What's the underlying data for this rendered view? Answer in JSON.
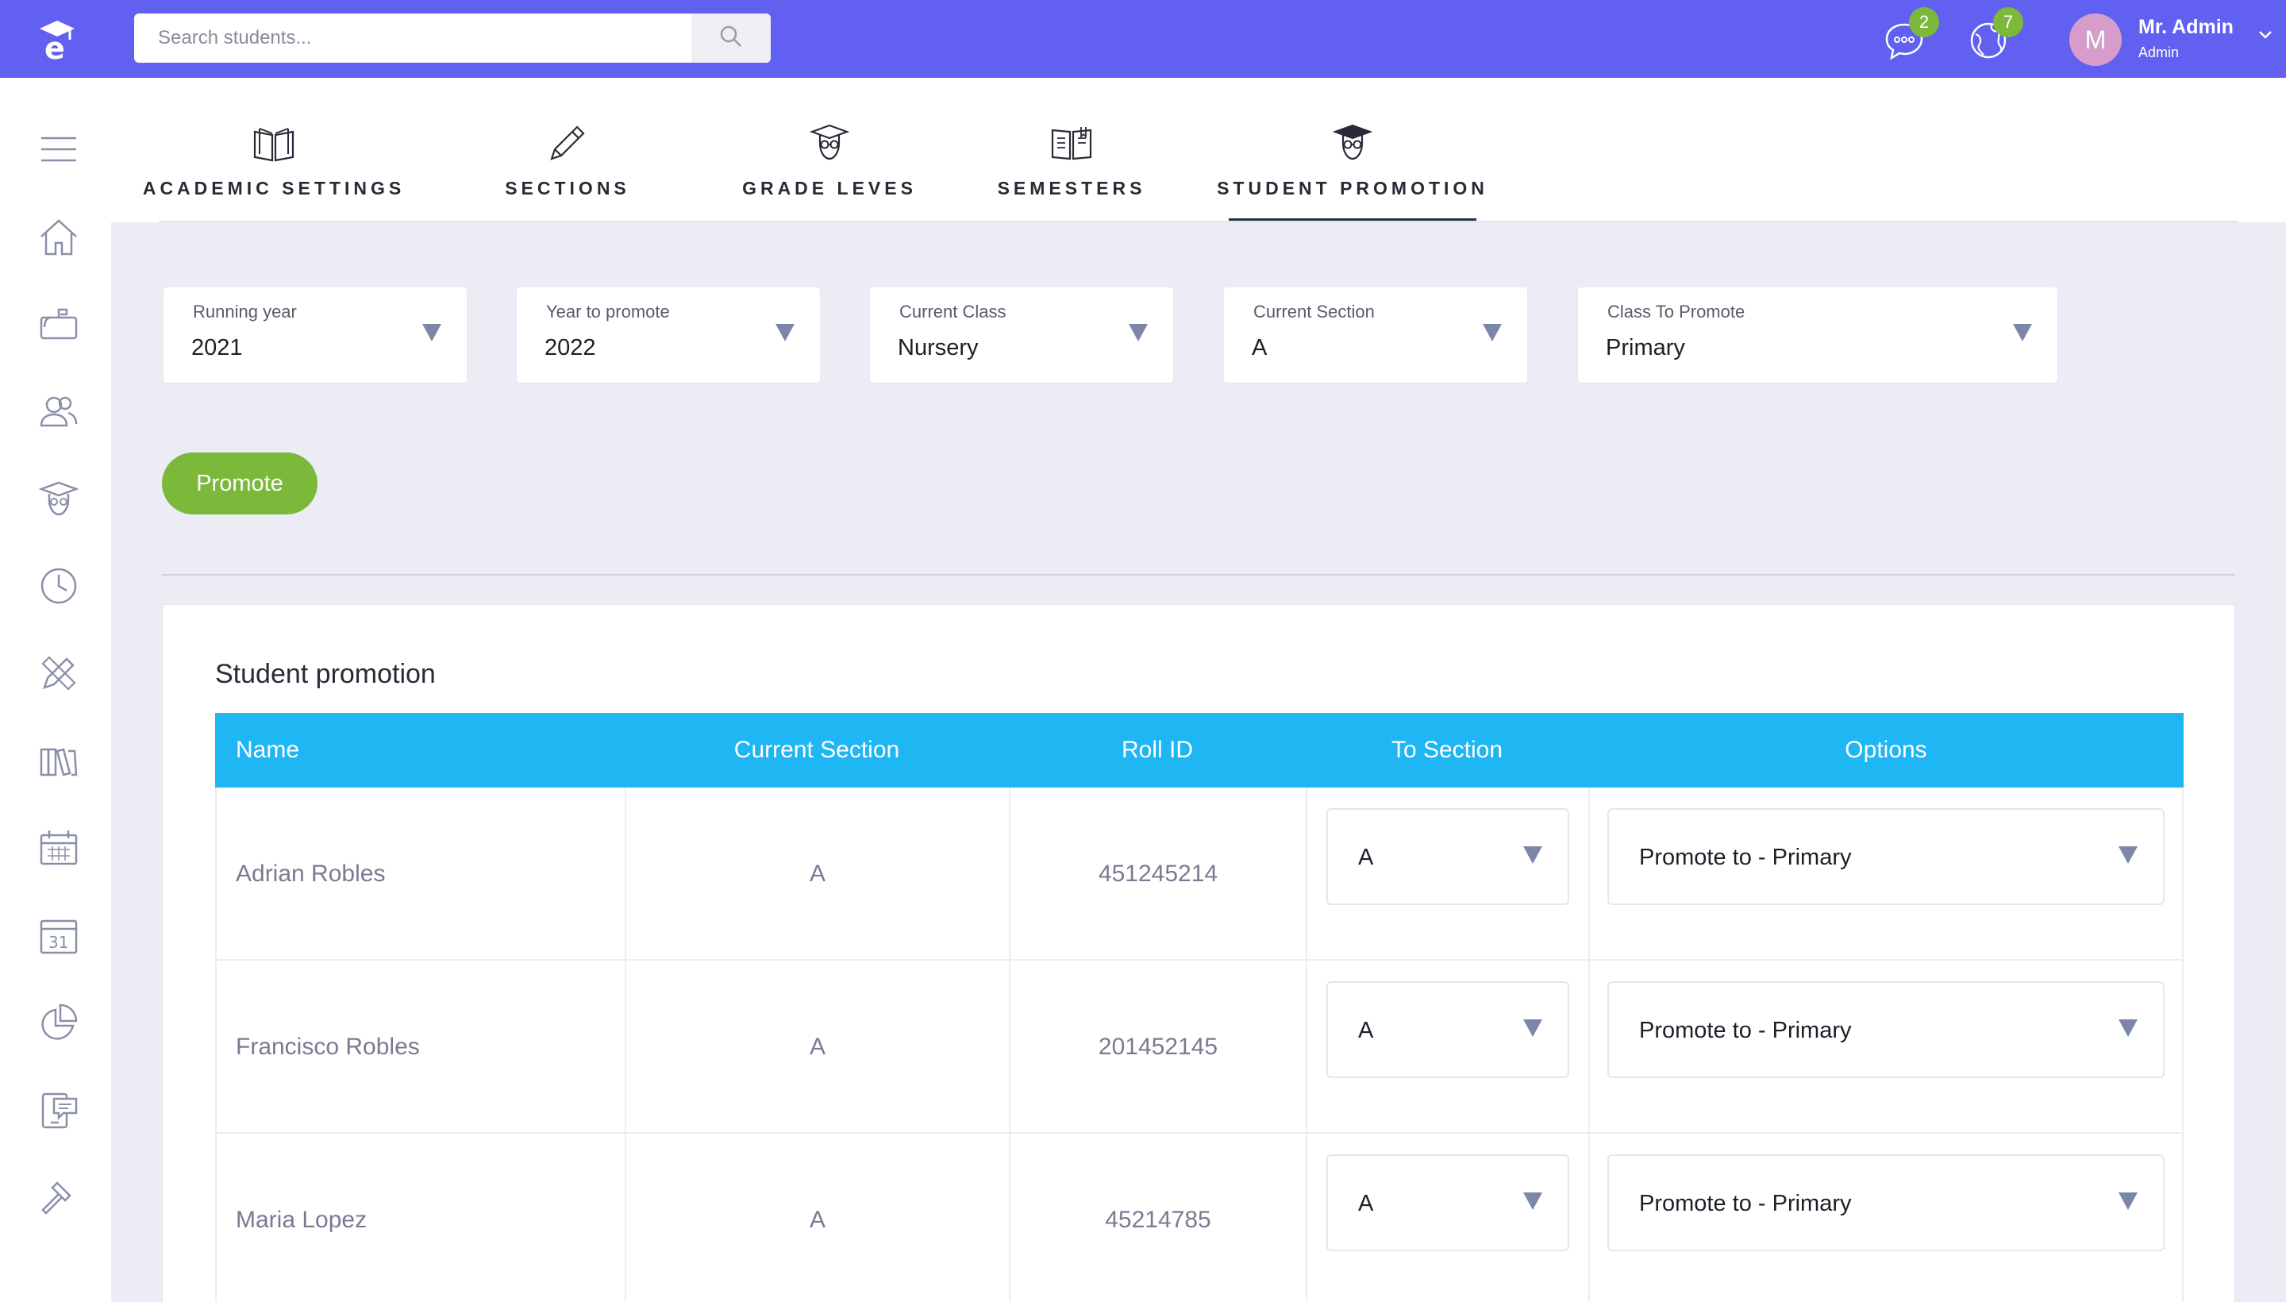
{
  "topbar": {
    "search_placeholder": "Search students...",
    "messages_badge": "2",
    "notifications_badge": "7",
    "avatar_initial": "M",
    "user_name": "Mr. Admin",
    "user_role": "Admin"
  },
  "tabs": [
    {
      "label": "ACADEMIC SETTINGS",
      "icon": "book-open-icon"
    },
    {
      "label": "SECTIONS",
      "icon": "pencil-icon"
    },
    {
      "label": "GRADE LEVES",
      "icon": "graduate-icon"
    },
    {
      "label": "SEMESTERS",
      "icon": "book-icon"
    },
    {
      "label": "STUDENT PROMOTION",
      "icon": "graduate-icon",
      "active": true
    }
  ],
  "filters": {
    "running_year": {
      "label": "Running year",
      "value": "2021"
    },
    "year_to_promote": {
      "label": "Year to promote",
      "value": "2022"
    },
    "current_class": {
      "label": "Current Class",
      "value": "Nursery"
    },
    "current_section": {
      "label": "Current Section",
      "value": "A"
    },
    "class_to_promote": {
      "label": "Class To Promote",
      "value": "Primary"
    }
  },
  "promote_button": "Promote",
  "table": {
    "title": "Student promotion",
    "headers": {
      "name": "Name",
      "current_section": "Current Section",
      "roll_id": "Roll ID",
      "to_section": "To Section",
      "options": "Options"
    },
    "rows": [
      {
        "name": "Adrian Robles",
        "current_section": "A",
        "roll_id": "451245214",
        "to_section": "A",
        "option": "Promote to - Primary"
      },
      {
        "name": "Francisco Robles",
        "current_section": "A",
        "roll_id": "201452145",
        "to_section": "A",
        "option": "Promote to - Primary"
      },
      {
        "name": "Maria Lopez",
        "current_section": "A",
        "roll_id": "45214785",
        "to_section": "A",
        "option": "Promote to - Primary"
      }
    ]
  },
  "colors": {
    "topbar": "#6160f0",
    "accent_green": "#7cb83a",
    "table_header": "#1fb6f4"
  }
}
